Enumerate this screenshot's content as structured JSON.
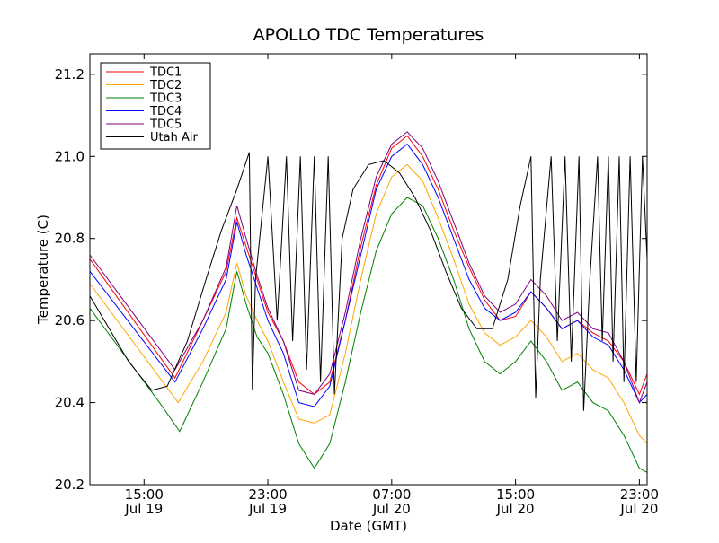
{
  "chart_data": {
    "type": "line",
    "title": "APOLLO TDC Temperatures",
    "xlabel": "Date (GMT)",
    "ylabel": "Temperature (C)",
    "xlim_hours": [
      11.5,
      47.5
    ],
    "ylim": [
      20.2,
      21.25
    ],
    "yticks": [
      20.2,
      20.4,
      20.6,
      20.8,
      21.0,
      21.2
    ],
    "ytick_labels": [
      "20.2",
      "20.4",
      "20.6",
      "20.8",
      "21.0",
      "21.2"
    ],
    "xticks_hours": [
      15,
      23,
      31,
      39,
      47
    ],
    "xtick_labels": [
      {
        "time": "15:00",
        "date": "Jul 19"
      },
      {
        "time": "23:00",
        "date": "Jul 19"
      },
      {
        "time": "07:00",
        "date": "Jul 20"
      },
      {
        "time": "15:00",
        "date": "Jul 20"
      },
      {
        "time": "23:00",
        "date": "Jul 20"
      }
    ],
    "x_unit_note": "hours since Jul 19 00:00 GMT",
    "legend_position": "upper-left",
    "series": [
      {
        "name": "TDC1",
        "color": "#ff0000",
        "points": [
          [
            11.5,
            20.75
          ],
          [
            17.0,
            20.46
          ],
          [
            18.8,
            20.6
          ],
          [
            20.3,
            20.72
          ],
          [
            21.0,
            20.85
          ],
          [
            21.6,
            20.78
          ],
          [
            22.3,
            20.7
          ],
          [
            23.0,
            20.62
          ],
          [
            24.0,
            20.55
          ],
          [
            25.0,
            20.45
          ],
          [
            26.0,
            20.42
          ],
          [
            27.0,
            20.45
          ],
          [
            28.0,
            20.6
          ],
          [
            29.0,
            20.78
          ],
          [
            30.0,
            20.93
          ],
          [
            31.0,
            21.02
          ],
          [
            32.0,
            21.05
          ],
          [
            33.0,
            21.0
          ],
          [
            34.0,
            20.92
          ],
          [
            35.0,
            20.82
          ],
          [
            36.0,
            20.73
          ],
          [
            37.0,
            20.65
          ],
          [
            38.0,
            20.6
          ],
          [
            39.0,
            20.61
          ],
          [
            40.0,
            20.67
          ],
          [
            41.0,
            20.63
          ],
          [
            42.0,
            20.58
          ],
          [
            43.0,
            20.6
          ],
          [
            44.0,
            20.57
          ],
          [
            45.0,
            20.55
          ],
          [
            46.0,
            20.5
          ],
          [
            47.0,
            20.42
          ],
          [
            47.5,
            20.47
          ]
        ]
      },
      {
        "name": "TDC2",
        "color": "#ffa500",
        "points": [
          [
            11.5,
            20.69
          ],
          [
            17.2,
            20.4
          ],
          [
            18.8,
            20.5
          ],
          [
            20.3,
            20.62
          ],
          [
            21.0,
            20.74
          ],
          [
            21.6,
            20.66
          ],
          [
            22.3,
            20.6
          ],
          [
            23.0,
            20.55
          ],
          [
            24.0,
            20.45
          ],
          [
            25.0,
            20.36
          ],
          [
            26.0,
            20.35
          ],
          [
            27.0,
            20.37
          ],
          [
            28.0,
            20.52
          ],
          [
            29.0,
            20.7
          ],
          [
            30.0,
            20.86
          ],
          [
            31.0,
            20.95
          ],
          [
            32.0,
            20.98
          ],
          [
            33.0,
            20.94
          ],
          [
            34.0,
            20.85
          ],
          [
            35.0,
            20.75
          ],
          [
            36.0,
            20.64
          ],
          [
            37.0,
            20.57
          ],
          [
            38.0,
            20.54
          ],
          [
            39.0,
            20.56
          ],
          [
            40.0,
            20.6
          ],
          [
            41.0,
            20.56
          ],
          [
            42.0,
            20.5
          ],
          [
            43.0,
            20.52
          ],
          [
            44.0,
            20.48
          ],
          [
            45.0,
            20.46
          ],
          [
            46.0,
            20.4
          ],
          [
            47.0,
            20.32
          ],
          [
            47.5,
            20.3
          ]
        ]
      },
      {
        "name": "TDC3",
        "color": "#008000",
        "points": [
          [
            11.5,
            20.63
          ],
          [
            16.0,
            20.4
          ],
          [
            17.3,
            20.33
          ],
          [
            18.8,
            20.45
          ],
          [
            20.3,
            20.58
          ],
          [
            21.0,
            20.72
          ],
          [
            21.6,
            20.64
          ],
          [
            22.3,
            20.56
          ],
          [
            23.0,
            20.52
          ],
          [
            24.0,
            20.42
          ],
          [
            25.0,
            20.3
          ],
          [
            26.0,
            20.24
          ],
          [
            27.0,
            20.3
          ],
          [
            28.0,
            20.45
          ],
          [
            29.0,
            20.62
          ],
          [
            30.0,
            20.77
          ],
          [
            31.0,
            20.86
          ],
          [
            32.0,
            20.9
          ],
          [
            33.0,
            20.88
          ],
          [
            34.0,
            20.8
          ],
          [
            35.0,
            20.7
          ],
          [
            36.0,
            20.58
          ],
          [
            37.0,
            20.5
          ],
          [
            38.0,
            20.47
          ],
          [
            39.0,
            20.5
          ],
          [
            40.0,
            20.55
          ],
          [
            41.0,
            20.5
          ],
          [
            42.0,
            20.43
          ],
          [
            43.0,
            20.45
          ],
          [
            44.0,
            20.4
          ],
          [
            45.0,
            20.38
          ],
          [
            46.0,
            20.32
          ],
          [
            47.0,
            20.24
          ],
          [
            47.5,
            20.23
          ]
        ]
      },
      {
        "name": "TDC4",
        "color": "#0000ff",
        "points": [
          [
            11.5,
            20.72
          ],
          [
            17.0,
            20.45
          ],
          [
            18.8,
            20.58
          ],
          [
            20.3,
            20.7
          ],
          [
            21.0,
            20.84
          ],
          [
            21.6,
            20.76
          ],
          [
            22.3,
            20.68
          ],
          [
            23.0,
            20.6
          ],
          [
            24.0,
            20.52
          ],
          [
            25.0,
            20.4
          ],
          [
            26.0,
            20.39
          ],
          [
            27.0,
            20.44
          ],
          [
            28.0,
            20.6
          ],
          [
            29.0,
            20.76
          ],
          [
            30.0,
            20.92
          ],
          [
            31.0,
            21.0
          ],
          [
            32.0,
            21.03
          ],
          [
            33.0,
            20.98
          ],
          [
            34.0,
            20.9
          ],
          [
            35.0,
            20.8
          ],
          [
            36.0,
            20.7
          ],
          [
            37.0,
            20.63
          ],
          [
            38.0,
            20.6
          ],
          [
            39.0,
            20.62
          ],
          [
            40.0,
            20.67
          ],
          [
            41.0,
            20.63
          ],
          [
            42.0,
            20.58
          ],
          [
            43.0,
            20.6
          ],
          [
            44.0,
            20.56
          ],
          [
            45.0,
            20.54
          ],
          [
            46.0,
            20.48
          ],
          [
            47.0,
            20.4
          ],
          [
            47.5,
            20.42
          ]
        ]
      },
      {
        "name": "TDC5",
        "color": "#800080",
        "points": [
          [
            11.5,
            20.76
          ],
          [
            17.0,
            20.48
          ],
          [
            18.8,
            20.6
          ],
          [
            20.3,
            20.73
          ],
          [
            21.0,
            20.88
          ],
          [
            21.6,
            20.8
          ],
          [
            22.3,
            20.71
          ],
          [
            23.0,
            20.63
          ],
          [
            24.0,
            20.55
          ],
          [
            25.0,
            20.43
          ],
          [
            26.0,
            20.42
          ],
          [
            27.0,
            20.47
          ],
          [
            28.0,
            20.62
          ],
          [
            29.0,
            20.8
          ],
          [
            30.0,
            20.95
          ],
          [
            31.0,
            21.03
          ],
          [
            32.0,
            21.06
          ],
          [
            33.0,
            21.02
          ],
          [
            34.0,
            20.94
          ],
          [
            35.0,
            20.84
          ],
          [
            36.0,
            20.74
          ],
          [
            37.0,
            20.66
          ],
          [
            38.0,
            20.62
          ],
          [
            39.0,
            20.64
          ],
          [
            40.0,
            20.7
          ],
          [
            41.0,
            20.66
          ],
          [
            42.0,
            20.6
          ],
          [
            43.0,
            20.62
          ],
          [
            44.0,
            20.58
          ],
          [
            45.0,
            20.57
          ],
          [
            46.0,
            20.5
          ],
          [
            47.0,
            20.4
          ],
          [
            47.5,
            20.45
          ]
        ]
      },
      {
        "name": "Utah Air",
        "color": "#000000",
        "points": [
          [
            11.5,
            20.66
          ],
          [
            14.0,
            20.5
          ],
          [
            15.5,
            20.43
          ],
          [
            16.5,
            20.44
          ],
          [
            17.8,
            20.55
          ],
          [
            19.0,
            20.7
          ],
          [
            20.0,
            20.82
          ],
          [
            21.0,
            20.92
          ],
          [
            21.8,
            21.01
          ],
          [
            22.0,
            20.43
          ],
          [
            22.2,
            20.7
          ],
          [
            23.0,
            21.0
          ],
          [
            23.6,
            20.6
          ],
          [
            24.2,
            21.0
          ],
          [
            24.6,
            20.55
          ],
          [
            25.1,
            21.0
          ],
          [
            25.5,
            20.48
          ],
          [
            26.0,
            21.0
          ],
          [
            26.4,
            20.45
          ],
          [
            26.9,
            21.0
          ],
          [
            27.3,
            20.42
          ],
          [
            27.8,
            20.8
          ],
          [
            28.5,
            20.92
          ],
          [
            29.5,
            20.98
          ],
          [
            30.5,
            20.99
          ],
          [
            31.5,
            20.96
          ],
          [
            32.5,
            20.9
          ],
          [
            33.5,
            20.82
          ],
          [
            34.5,
            20.72
          ],
          [
            35.5,
            20.63
          ],
          [
            36.5,
            20.58
          ],
          [
            37.5,
            20.58
          ],
          [
            38.5,
            20.7
          ],
          [
            39.3,
            20.88
          ],
          [
            40.0,
            21.0
          ],
          [
            40.3,
            20.41
          ],
          [
            40.6,
            20.7
          ],
          [
            41.3,
            21.0
          ],
          [
            41.7,
            20.55
          ],
          [
            42.2,
            21.0
          ],
          [
            42.6,
            20.5
          ],
          [
            43.1,
            21.0
          ],
          [
            43.4,
            20.38
          ],
          [
            43.8,
            20.7
          ],
          [
            44.3,
            21.0
          ],
          [
            44.6,
            20.55
          ],
          [
            45.0,
            21.0
          ],
          [
            45.3,
            20.5
          ],
          [
            45.7,
            21.0
          ],
          [
            46.0,
            20.45
          ],
          [
            46.4,
            21.0
          ],
          [
            46.8,
            20.45
          ],
          [
            47.2,
            21.0
          ],
          [
            47.5,
            20.75
          ]
        ]
      }
    ]
  }
}
